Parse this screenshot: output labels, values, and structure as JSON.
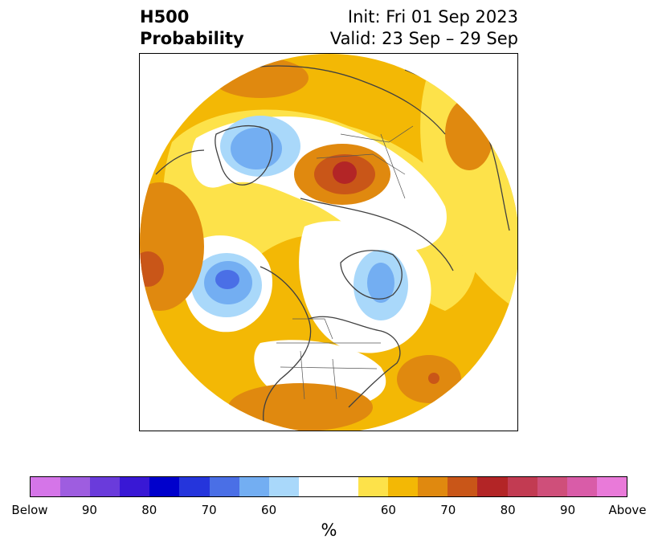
{
  "title": {
    "left_line1": "H500",
    "left_line2": "Probability",
    "right_line1": "Init: Fri 01 Sep 2023",
    "right_line2": "Valid: 23 Sep – 29 Sep"
  },
  "colorbar": {
    "colors": [
      "#d575e8",
      "#9e5de0",
      "#6a3bdb",
      "#3918d5",
      "#0000cc",
      "#2535dc",
      "#4a6fe6",
      "#73aef2",
      "#a9d8fa",
      "#ffffff",
      "#ffffff",
      "#fde24a",
      "#f3b805",
      "#e0890f",
      "#c95618",
      "#b32526",
      "#c23b52",
      "#cf4f7a",
      "#d95ca8",
      "#e97ad9"
    ],
    "labels": [
      "Below",
      "90",
      "80",
      "70",
      "60",
      "60",
      "70",
      "80",
      "90",
      "Above"
    ],
    "unit": "%"
  }
}
